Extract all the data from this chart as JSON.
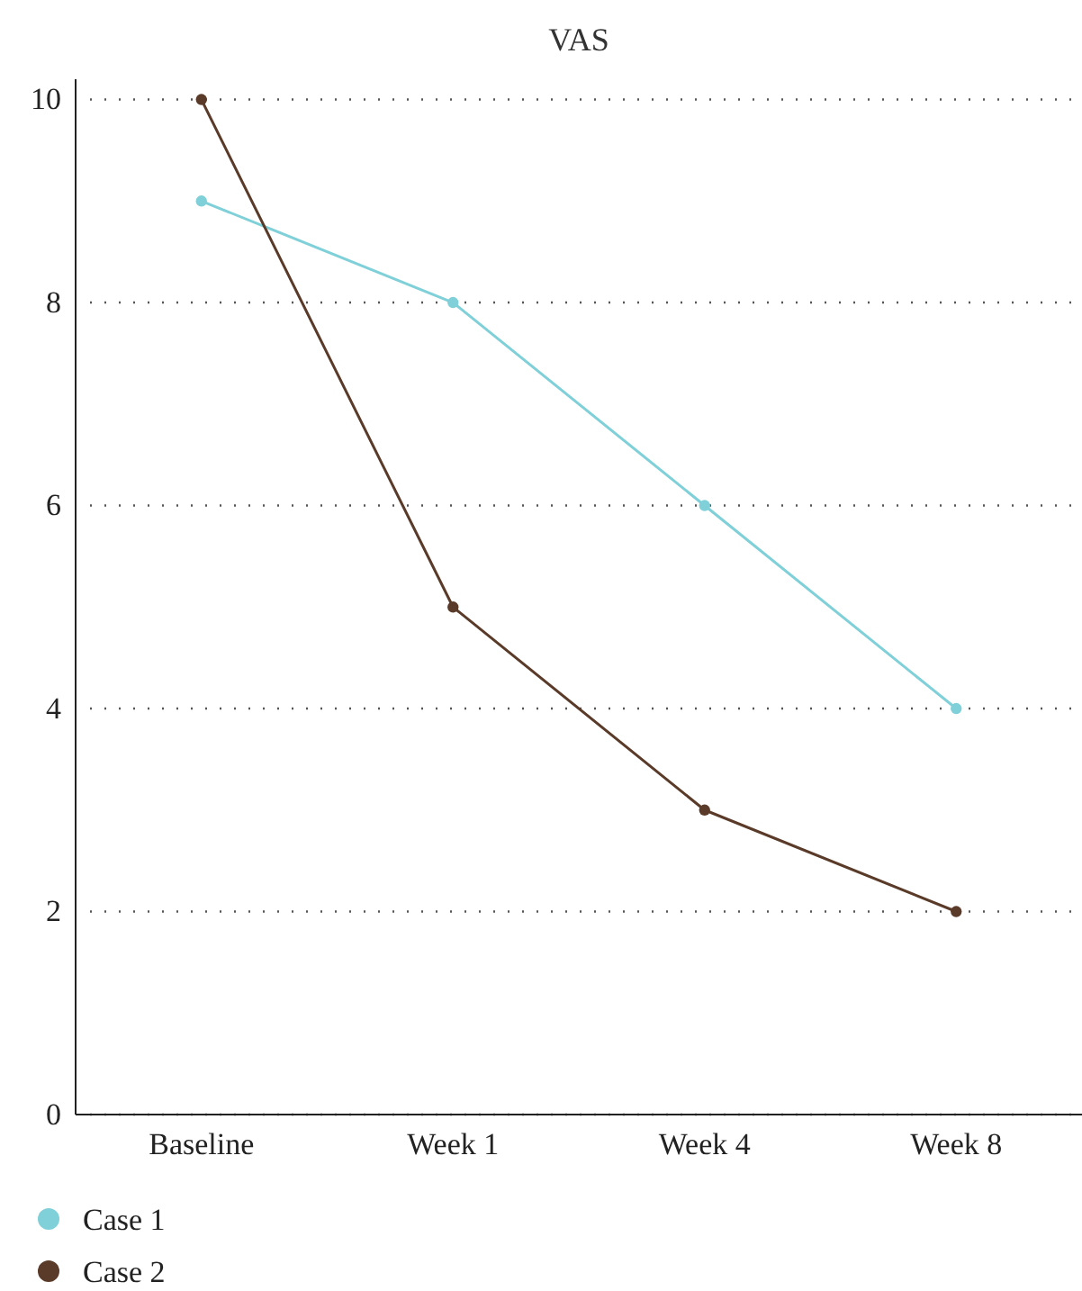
{
  "chart_data": {
    "type": "line",
    "title": "VAS",
    "categories": [
      "Baseline",
      "Week 1",
      "Week 4",
      "Week 8"
    ],
    "series": [
      {
        "name": "Case 1",
        "color": "#7fd0d8",
        "values": [
          9,
          8,
          6,
          4
        ]
      },
      {
        "name": "Case 2",
        "color": "#5a3a28",
        "values": [
          10,
          5,
          3,
          2
        ]
      }
    ],
    "ylim": [
      0,
      10.2
    ],
    "yticks": [
      0,
      2,
      4,
      6,
      8,
      10
    ],
    "grid": "y",
    "legend": "bottom",
    "marker": "circle",
    "line_style": "solid"
  }
}
